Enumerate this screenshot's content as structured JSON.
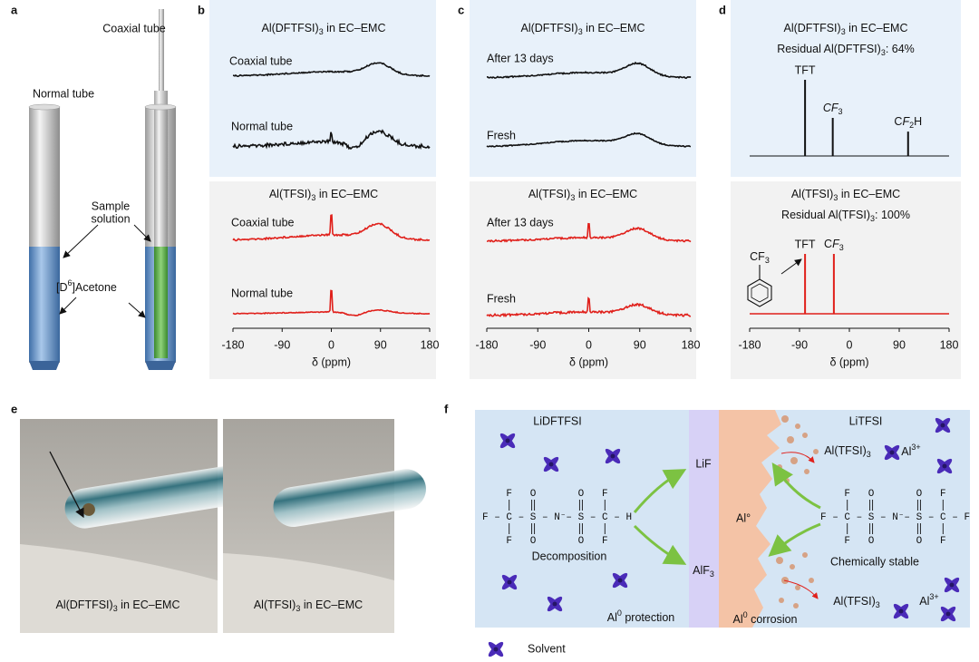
{
  "axis": {
    "xlim": [
      -180,
      180
    ],
    "xticks": [
      -180,
      -90,
      0,
      90,
      180
    ],
    "xlabel": "δ (ppm)"
  },
  "a": {
    "label": "a",
    "coaxial_tube": "Coaxial tube",
    "normal_tube": "Normal tube",
    "sample": "Sample",
    "solution": "solution",
    "acetone": [
      {
        "t": "[D"
      },
      {
        "t": "6",
        "s": "sup"
      },
      {
        "t": "]Acetone"
      }
    ]
  },
  "b": {
    "label": "b",
    "top": {
      "title": [
        {
          "t": "Al(DFTFSI)"
        },
        {
          "t": "3",
          "s": "sub"
        },
        {
          "t": " in EC–EMC"
        }
      ],
      "traces": [
        "Coaxial tube",
        "Normal tube"
      ]
    },
    "bottom": {
      "title": [
        {
          "t": "Al(TFSI)"
        },
        {
          "t": "3",
          "s": "sub"
        },
        {
          "t": " in EC–EMC"
        }
      ],
      "traces": [
        "Coaxial tube",
        "Normal tube"
      ]
    }
  },
  "c": {
    "label": "c",
    "top": {
      "title": [
        {
          "t": "Al(DFTFSI)"
        },
        {
          "t": "3",
          "s": "sub"
        },
        {
          "t": " in EC–EMC"
        }
      ],
      "traces": [
        "After 13 days",
        "Fresh"
      ]
    },
    "bottom": {
      "title": [
        {
          "t": "Al(TFSI)"
        },
        {
          "t": "3",
          "s": "sub"
        },
        {
          "t": " in EC–EMC"
        }
      ],
      "traces": [
        "After 13 days",
        "Fresh"
      ]
    }
  },
  "d": {
    "label": "d",
    "top": {
      "title": [
        {
          "t": "Al(DFTFSI)"
        },
        {
          "t": "3",
          "s": "sub"
        },
        {
          "t": " in EC–EMC"
        }
      ],
      "residual": [
        {
          "t": "Residual Al(DFTFSI)"
        },
        {
          "t": "3",
          "s": "sub"
        },
        {
          "t": ": 64%"
        }
      ],
      "peaks": [
        {
          "label": "TFT",
          "ppm": -80,
          "height": 1
        },
        {
          "label": [
            {
              "t": "C",
              "s": "i"
            },
            {
              "t": "F",
              "s": "i"
            },
            {
              "t": "3",
              "s": "sub"
            }
          ],
          "ppm": -30,
          "height": 0.5
        },
        {
          "label": [
            {
              "t": "C"
            },
            {
              "t": "F",
              "s": "i"
            },
            {
              "t": "2",
              "s": "sub"
            },
            {
              "t": "H"
            }
          ],
          "ppm": 106,
          "height": 0.32
        }
      ]
    },
    "bottom": {
      "title": [
        {
          "t": "Al(TFSI)"
        },
        {
          "t": "3",
          "s": "sub"
        },
        {
          "t": " in EC–EMC"
        }
      ],
      "residual": [
        {
          "t": "Residual Al(TFSI)"
        },
        {
          "t": "3",
          "s": "sub"
        },
        {
          "t": ": 100%"
        }
      ],
      "peaks": [
        {
          "label": "TFT",
          "ppm": -80,
          "height": 1
        },
        {
          "label": [
            {
              "t": "C"
            },
            {
              "t": "F",
              "s": "i"
            },
            {
              "t": "3",
              "s": "sub"
            }
          ],
          "ppm": -28,
          "height": 1
        }
      ],
      "ring_label": [
        {
          "t": "CF"
        },
        {
          "t": "3",
          "s": "sub"
        }
      ]
    }
  },
  "e": {
    "label": "e",
    "captions": [
      [
        {
          "t": "Al(DFTFSI)"
        },
        {
          "t": "3",
          "s": "sub"
        },
        {
          "t": " in EC–EMC"
        }
      ],
      [
        {
          "t": "Al(TFSI)"
        },
        {
          "t": "3",
          "s": "sub"
        },
        {
          "t": " in EC–EMC"
        }
      ]
    ]
  },
  "f": {
    "label": "f",
    "left_salt": "LiDFTFSI",
    "right_salt": "LiTFSI",
    "lif": "LiF",
    "alf3": [
      {
        "t": "AlF"
      },
      {
        "t": "3",
        "s": "sub"
      }
    ],
    "al_metal": "Al°",
    "decomposition": "Decomposition",
    "stable": "Chemically stable",
    "protection": [
      {
        "t": "Al"
      },
      {
        "t": "0",
        "s": "sup"
      },
      {
        "t": " protection"
      }
    ],
    "corrosion": [
      {
        "t": "Al"
      },
      {
        "t": "0",
        "s": "sup"
      },
      {
        "t": " corrosion"
      }
    ],
    "product_top": [
      {
        "t": "Al(TFSI)"
      },
      {
        "t": "3",
        "s": "sub"
      }
    ],
    "product_bottom": [
      {
        "t": "Al(TFSI)"
      },
      {
        "t": "3",
        "s": "sub"
      }
    ],
    "ion_top": [
      {
        "t": "Al"
      },
      {
        "t": "3+",
        "s": "sup"
      }
    ],
    "ion_bottom": [
      {
        "t": "Al"
      },
      {
        "t": "3+",
        "s": "sup"
      }
    ],
    "left_molecule": {
      "top": "    F   O       O   F",
      "middle": "F – C – S – N⁻– S – C – H",
      "bottom": "    F   O       O   F"
    },
    "right_molecule": {
      "top": "    F   O       O   F",
      "middle": "F – C – S – N⁻– S – C – F",
      "bottom": "    F   O       O   F"
    },
    "legend": "Solvent"
  }
}
